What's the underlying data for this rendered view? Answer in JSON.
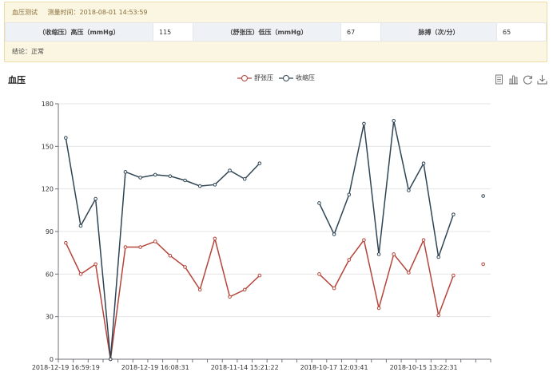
{
  "info": {
    "test_name": "血压测试",
    "measure_label": "测量时间：",
    "measure_time": "2018-08-01 14:53:59",
    "fields": [
      {
        "label": "（收缩压）高压（mmHg）",
        "value": "115"
      },
      {
        "label": "（舒张压）低压（mmHg）",
        "value": "67"
      },
      {
        "label": "脉搏（次/分）",
        "value": "65"
      }
    ],
    "conclusion": "结论：正常"
  },
  "toolbox": [
    "data-view-icon",
    "bar-chart-icon",
    "refresh-icon",
    "download-icon"
  ],
  "chart_data": {
    "type": "line",
    "title": "血压",
    "legend": [
      "舒张压",
      "收缩压"
    ],
    "legend_position": "top-center",
    "grid": true,
    "ylim": [
      0,
      180
    ],
    "yticks": [
      0,
      30,
      60,
      90,
      120,
      150,
      180
    ],
    "x_tick_labels": [
      "2018-12-19 16:59:19",
      "2018-12-19 16:08:31",
      "2018-11-14 15:21:22",
      "2018-10-17 12:03:41",
      "2018-10-15 13:22:31"
    ],
    "series": [
      {
        "name": "舒张压",
        "color": "#b5443a",
        "values": [
          82,
          60,
          67,
          0,
          79,
          79,
          83,
          73,
          65,
          49,
          85,
          44,
          49,
          59,
          null,
          null,
          null,
          60,
          50,
          70,
          84,
          36,
          74,
          61,
          84,
          31,
          59,
          null,
          67
        ]
      },
      {
        "name": "收缩压",
        "color": "#2f4554",
        "values": [
          156,
          94,
          113,
          0,
          132,
          128,
          130,
          129,
          126,
          122,
          123,
          133,
          127,
          138,
          null,
          null,
          null,
          110,
          88,
          116,
          166,
          74,
          168,
          119,
          138,
          72,
          102,
          null,
          115
        ]
      }
    ]
  }
}
